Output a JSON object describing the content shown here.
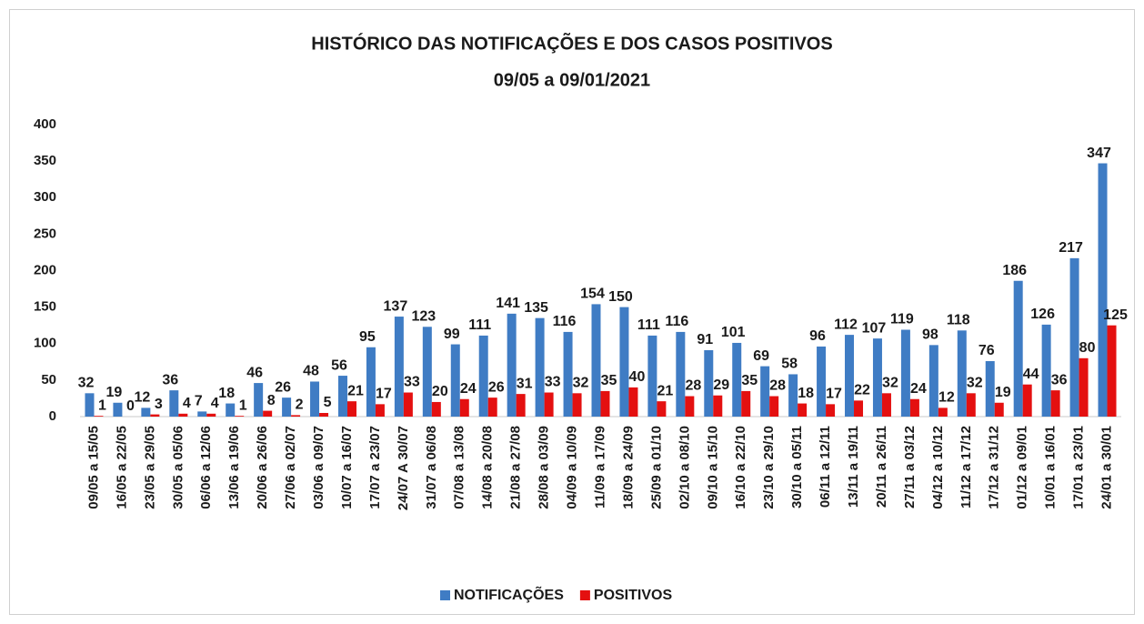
{
  "chart_data": {
    "type": "bar",
    "title": "HISTÓRICO DAS NOTIFICAÇÕES E DOS CASOS POSITIVOS",
    "subtitle": "09/05  a  09/01/2021",
    "categories": [
      "09/05 a 15/05",
      "16/05 a 22/05",
      "23/05 a 29/05",
      "30/05 a 05/06",
      "06/06 a 12/06",
      "13/06 a 19/06",
      "20/06 a 26/06",
      "27/06 a 02/07",
      "03/06 a 09/07",
      "10/07 a 16/07",
      "17/07 a 23/07",
      "24/07 A 30/07",
      "31/07 a 06/08",
      "07/08 a 13/08",
      "14/08 a 20/08",
      "21/08 a 27/08",
      "28/08 a 03/09",
      "04/09 a 10/09",
      "11/09 a 17/09",
      "18/09 a 24/09",
      "25/09 a 01/10",
      "02/10 a 08/10",
      "09/10 a 15/10",
      "16/10 a 22/10",
      "23/10 a 29/10",
      "30/10 a 05/11",
      "06/11 a 12/11",
      "13/11 a 19/11",
      "20/11 a 26/11",
      "27/11 a 03/12",
      "04/12 a 10/12",
      "11/12 a 17/12",
      "17/12 a 31/12",
      "01/12 a 09/01",
      "10/01 a 16/01",
      "17/01 a 23/01",
      "24/01 a 30/01"
    ],
    "series": [
      {
        "name": "NOTIFICAÇÕES",
        "color": "#3f7cc4",
        "values": [
          32,
          19,
          12,
          36,
          7,
          18,
          46,
          26,
          48,
          56,
          95,
          137,
          123,
          99,
          111,
          141,
          135,
          116,
          154,
          150,
          111,
          116,
          91,
          101,
          69,
          58,
          96,
          112,
          107,
          119,
          98,
          118,
          76,
          186,
          126,
          217,
          347
        ]
      },
      {
        "name": "POSITIVOS",
        "color": "#e41010",
        "values": [
          1,
          0,
          3,
          4,
          4,
          1,
          8,
          2,
          5,
          21,
          17,
          33,
          20,
          24,
          26,
          31,
          33,
          32,
          35,
          40,
          21,
          28,
          29,
          35,
          28,
          18,
          17,
          22,
          32,
          24,
          12,
          32,
          19,
          44,
          36,
          80,
          125
        ]
      }
    ],
    "ylim": [
      0,
      400
    ],
    "yticks": [
      0,
      50,
      100,
      150,
      200,
      250,
      300,
      350,
      400
    ],
    "grid": false,
    "legend": "bottom"
  }
}
